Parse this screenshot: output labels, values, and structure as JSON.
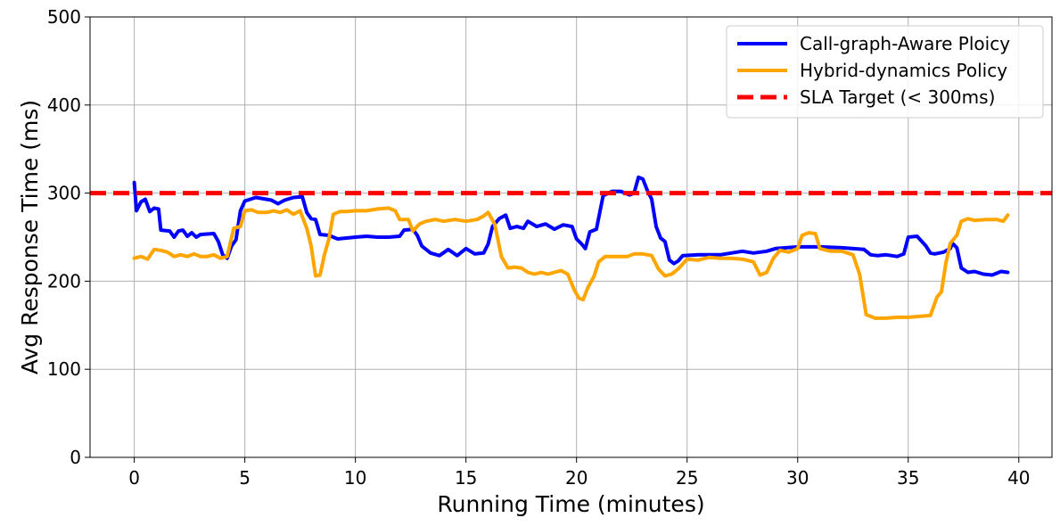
{
  "chart_data": {
    "type": "line",
    "xlabel": "Running Time (minutes)",
    "ylabel": "Avg Response Time (ms)",
    "xlim": [
      -2,
      41.5
    ],
    "ylim": [
      0,
      500
    ],
    "xticks": [
      0,
      5,
      10,
      15,
      20,
      25,
      30,
      35,
      40
    ],
    "yticks": [
      0,
      100,
      200,
      300,
      400,
      500
    ],
    "grid": true,
    "legend_position": "top-right",
    "series": [
      {
        "name": "Call-graph-Aware Ploicy",
        "color": "#0000ff",
        "style": "solid",
        "points": [
          [
            0,
            312
          ],
          [
            0.1,
            280
          ],
          [
            0.3,
            290
          ],
          [
            0.5,
            293
          ],
          [
            0.7,
            279
          ],
          [
            0.9,
            283
          ],
          [
            1.1,
            282
          ],
          [
            1.2,
            258
          ],
          [
            1.6,
            257
          ],
          [
            1.8,
            250
          ],
          [
            2.0,
            257
          ],
          [
            2.2,
            258
          ],
          [
            2.4,
            251
          ],
          [
            2.6,
            255
          ],
          [
            2.8,
            250
          ],
          [
            3.0,
            253
          ],
          [
            3.6,
            254
          ],
          [
            3.8,
            245
          ],
          [
            4.0,
            230
          ],
          [
            4.2,
            226
          ],
          [
            4.4,
            240
          ],
          [
            4.6,
            247
          ],
          [
            4.8,
            280
          ],
          [
            5.0,
            291
          ],
          [
            5.5,
            295
          ],
          [
            6.2,
            292
          ],
          [
            6.5,
            288
          ],
          [
            6.8,
            292
          ],
          [
            7.2,
            295
          ],
          [
            7.6,
            296
          ],
          [
            7.8,
            278
          ],
          [
            8.0,
            271
          ],
          [
            8.2,
            270
          ],
          [
            8.4,
            253
          ],
          [
            8.8,
            252
          ],
          [
            9.2,
            248
          ],
          [
            9.6,
            249
          ],
          [
            10.0,
            250
          ],
          [
            10.5,
            251
          ],
          [
            11.0,
            250
          ],
          [
            11.5,
            250
          ],
          [
            12.0,
            251
          ],
          [
            12.2,
            258
          ],
          [
            12.6,
            259
          ],
          [
            12.8,
            252
          ],
          [
            13.0,
            240
          ],
          [
            13.4,
            232
          ],
          [
            13.8,
            229
          ],
          [
            14.2,
            236
          ],
          [
            14.6,
            229
          ],
          [
            15.0,
            237
          ],
          [
            15.4,
            231
          ],
          [
            15.8,
            232
          ],
          [
            16.0,
            242
          ],
          [
            16.2,
            262
          ],
          [
            16.5,
            271
          ],
          [
            16.8,
            275
          ],
          [
            17.0,
            260
          ],
          [
            17.3,
            262
          ],
          [
            17.6,
            260
          ],
          [
            17.8,
            268
          ],
          [
            18.2,
            262
          ],
          [
            18.6,
            265
          ],
          [
            19.0,
            259
          ],
          [
            19.4,
            264
          ],
          [
            19.8,
            262
          ],
          [
            20.0,
            248
          ],
          [
            20.2,
            243
          ],
          [
            20.4,
            237
          ],
          [
            20.6,
            256
          ],
          [
            20.9,
            259
          ],
          [
            21.2,
            297
          ],
          [
            21.6,
            302
          ],
          [
            22.0,
            302
          ],
          [
            22.4,
            298
          ],
          [
            22.6,
            300
          ],
          [
            22.8,
            318
          ],
          [
            23.0,
            316
          ],
          [
            23.2,
            303
          ],
          [
            23.4,
            293
          ],
          [
            23.6,
            262
          ],
          [
            23.8,
            249
          ],
          [
            24.0,
            245
          ],
          [
            24.2,
            224
          ],
          [
            24.4,
            220
          ],
          [
            24.6,
            223
          ],
          [
            24.8,
            229
          ],
          [
            25.5,
            230
          ],
          [
            26.5,
            230
          ],
          [
            27.0,
            232
          ],
          [
            27.5,
            234
          ],
          [
            28.0,
            232
          ],
          [
            28.6,
            234
          ],
          [
            29.0,
            237
          ],
          [
            30.0,
            239
          ],
          [
            31.0,
            239
          ],
          [
            32.0,
            238
          ],
          [
            33.0,
            236
          ],
          [
            33.3,
            230
          ],
          [
            33.6,
            229
          ],
          [
            34.0,
            230
          ],
          [
            34.5,
            228
          ],
          [
            34.8,
            231
          ],
          [
            35.0,
            250
          ],
          [
            35.4,
            251
          ],
          [
            35.8,
            240
          ],
          [
            36.0,
            232
          ],
          [
            36.2,
            231
          ],
          [
            36.6,
            233
          ],
          [
            36.9,
            237
          ],
          [
            37.0,
            243
          ],
          [
            37.2,
            238
          ],
          [
            37.4,
            215
          ],
          [
            37.7,
            210
          ],
          [
            38.0,
            211
          ],
          [
            38.4,
            208
          ],
          [
            38.8,
            207
          ],
          [
            39.2,
            211
          ],
          [
            39.5,
            210
          ]
        ]
      },
      {
        "name": "Hybrid-dynamics Policy",
        "color": "#ffa500",
        "style": "solid",
        "points": [
          [
            0,
            226
          ],
          [
            0.3,
            228
          ],
          [
            0.6,
            225
          ],
          [
            0.9,
            236
          ],
          [
            1.2,
            235
          ],
          [
            1.5,
            233
          ],
          [
            1.8,
            228
          ],
          [
            2.1,
            230
          ],
          [
            2.4,
            228
          ],
          [
            2.7,
            231
          ],
          [
            3.0,
            228
          ],
          [
            3.3,
            228
          ],
          [
            3.6,
            230
          ],
          [
            3.9,
            226
          ],
          [
            4.2,
            228
          ],
          [
            4.5,
            260
          ],
          [
            4.8,
            262
          ],
          [
            5.0,
            280
          ],
          [
            5.3,
            281
          ],
          [
            5.6,
            278
          ],
          [
            6.0,
            278
          ],
          [
            6.3,
            280
          ],
          [
            6.6,
            278
          ],
          [
            6.9,
            281
          ],
          [
            7.2,
            276
          ],
          [
            7.5,
            280
          ],
          [
            7.8,
            260
          ],
          [
            8.0,
            240
          ],
          [
            8.2,
            206
          ],
          [
            8.4,
            207
          ],
          [
            8.6,
            230
          ],
          [
            8.8,
            248
          ],
          [
            9.0,
            276
          ],
          [
            9.3,
            279
          ],
          [
            9.6,
            279
          ],
          [
            10.0,
            280
          ],
          [
            10.5,
            280
          ],
          [
            11.0,
            282
          ],
          [
            11.5,
            283
          ],
          [
            11.8,
            280
          ],
          [
            12.0,
            270
          ],
          [
            12.4,
            270
          ],
          [
            12.6,
            257
          ],
          [
            12.9,
            265
          ],
          [
            13.2,
            268
          ],
          [
            13.6,
            270
          ],
          [
            14.0,
            268
          ],
          [
            14.5,
            270
          ],
          [
            15.0,
            268
          ],
          [
            15.5,
            270
          ],
          [
            15.8,
            274
          ],
          [
            16.0,
            278
          ],
          [
            16.3,
            265
          ],
          [
            16.6,
            228
          ],
          [
            16.9,
            215
          ],
          [
            17.2,
            216
          ],
          [
            17.5,
            215
          ],
          [
            17.8,
            210
          ],
          [
            18.1,
            208
          ],
          [
            18.4,
            210
          ],
          [
            18.7,
            208
          ],
          [
            19.0,
            210
          ],
          [
            19.3,
            212
          ],
          [
            19.6,
            208
          ],
          [
            19.9,
            190
          ],
          [
            20.1,
            181
          ],
          [
            20.3,
            179
          ],
          [
            20.5,
            192
          ],
          [
            20.8,
            206
          ],
          [
            21.0,
            222
          ],
          [
            21.3,
            228
          ],
          [
            21.8,
            228
          ],
          [
            22.3,
            228
          ],
          [
            22.6,
            231
          ],
          [
            23.0,
            231
          ],
          [
            23.4,
            229
          ],
          [
            23.7,
            214
          ],
          [
            24.0,
            206
          ],
          [
            24.3,
            208
          ],
          [
            24.6,
            214
          ],
          [
            25.0,
            225
          ],
          [
            25.5,
            224
          ],
          [
            26.0,
            227
          ],
          [
            26.5,
            226
          ],
          [
            27.0,
            226
          ],
          [
            27.5,
            225
          ],
          [
            28.0,
            222
          ],
          [
            28.3,
            207
          ],
          [
            28.6,
            210
          ],
          [
            28.9,
            226
          ],
          [
            29.2,
            235
          ],
          [
            29.6,
            233
          ],
          [
            30.0,
            237
          ],
          [
            30.2,
            252
          ],
          [
            30.5,
            255
          ],
          [
            30.8,
            254
          ],
          [
            31.0,
            237
          ],
          [
            31.5,
            234
          ],
          [
            32.0,
            234
          ],
          [
            32.5,
            230
          ],
          [
            32.8,
            208
          ],
          [
            33.1,
            162
          ],
          [
            33.5,
            158
          ],
          [
            34.0,
            158
          ],
          [
            34.5,
            159
          ],
          [
            35.0,
            159
          ],
          [
            35.5,
            160
          ],
          [
            36.0,
            161
          ],
          [
            36.3,
            182
          ],
          [
            36.5,
            188
          ],
          [
            36.7,
            220
          ],
          [
            36.9,
            243
          ],
          [
            37.2,
            252
          ],
          [
            37.4,
            268
          ],
          [
            37.7,
            271
          ],
          [
            38.0,
            269
          ],
          [
            38.5,
            270
          ],
          [
            39.0,
            270
          ],
          [
            39.3,
            268
          ],
          [
            39.5,
            275
          ]
        ]
      },
      {
        "name": "SLA Target (< 300ms)",
        "color": "#ff0000",
        "style": "dashed",
        "points": [
          [
            -2,
            300
          ],
          [
            41.5,
            300
          ]
        ]
      }
    ]
  }
}
